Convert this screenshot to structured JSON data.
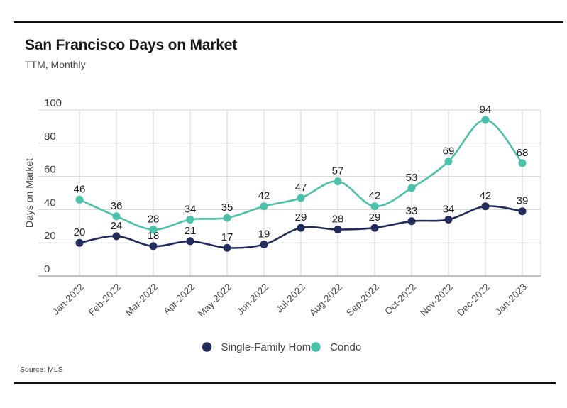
{
  "header": {
    "title": "San Francisco Days on Market",
    "subtitle": "TTM, Monthly"
  },
  "footer": {
    "source": "Source: MLS"
  },
  "chart_data": {
    "type": "line",
    "title": "San Francisco Days on Market",
    "subtitle": "TTM, Monthly",
    "categories": [
      "Jan-2022",
      "Feb-2022",
      "Mar-2022",
      "Apr-2022",
      "May-2022",
      "Jun-2022",
      "Jul-2022",
      "Aug-2022",
      "Sep-2022",
      "Oct-2022",
      "Nov-2022",
      "Dec-2022",
      "Jan-2023"
    ],
    "series": [
      {
        "name": "Single-Family Home",
        "color": "#222D5D",
        "values": [
          20,
          24,
          18,
          21,
          17,
          19,
          29,
          28,
          29,
          33,
          34,
          42,
          39
        ]
      },
      {
        "name": "Condo",
        "color": "#4BC1AA",
        "values": [
          46,
          36,
          28,
          34,
          35,
          42,
          47,
          57,
          42,
          53,
          69,
          94,
          68
        ]
      }
    ],
    "xlabel": "",
    "ylabel": "Days on Market",
    "yticks": [
      0,
      20,
      40,
      60,
      80,
      100
    ],
    "ylim": [
      0,
      100
    ],
    "grid": true,
    "smooth_lines": true,
    "point_labels": true,
    "legend_position": "bottom",
    "colors": {
      "grid_line": "#d5d5d5",
      "baseline": "#9b9b9b",
      "tick_label": "#3f3f3f",
      "value_label": "#1e1e1e",
      "month_label": "#4a4a4a",
      "legend_label": "#444444",
      "axis_title": "#3f3f3f"
    }
  }
}
